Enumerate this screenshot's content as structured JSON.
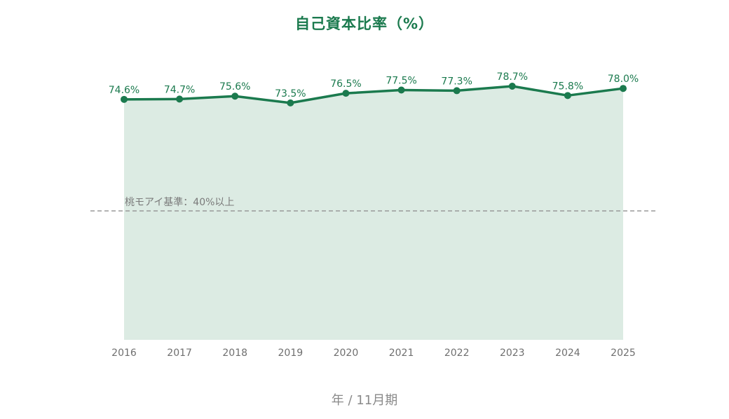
{
  "chart_data": {
    "type": "area",
    "title": "自己資本比率（%）",
    "xlabel": "年 / 11月期",
    "ylabel": "",
    "categories": [
      "2016",
      "2017",
      "2018",
      "2019",
      "2020",
      "2021",
      "2022",
      "2023",
      "2024",
      "2025"
    ],
    "series": [
      {
        "values": [
          74.6,
          74.7,
          75.6,
          73.5,
          76.5,
          77.5,
          77.3,
          78.7,
          75.8,
          78.0
        ],
        "labels": [
          "74.6%",
          "74.7%",
          "75.6%",
          "73.5%",
          "76.5%",
          "77.5%",
          "77.3%",
          "78.7%",
          "75.8%",
          "78.0%"
        ],
        "color": "#1b7a4e",
        "fill_color": "#dcebe3"
      }
    ],
    "ylim": [
      0,
      100
    ],
    "grid": false,
    "reference_line": {
      "value": 40,
      "label": "桃モアイ基準：40%以上",
      "color": "#9a9a9a",
      "style": "dashed"
    }
  }
}
